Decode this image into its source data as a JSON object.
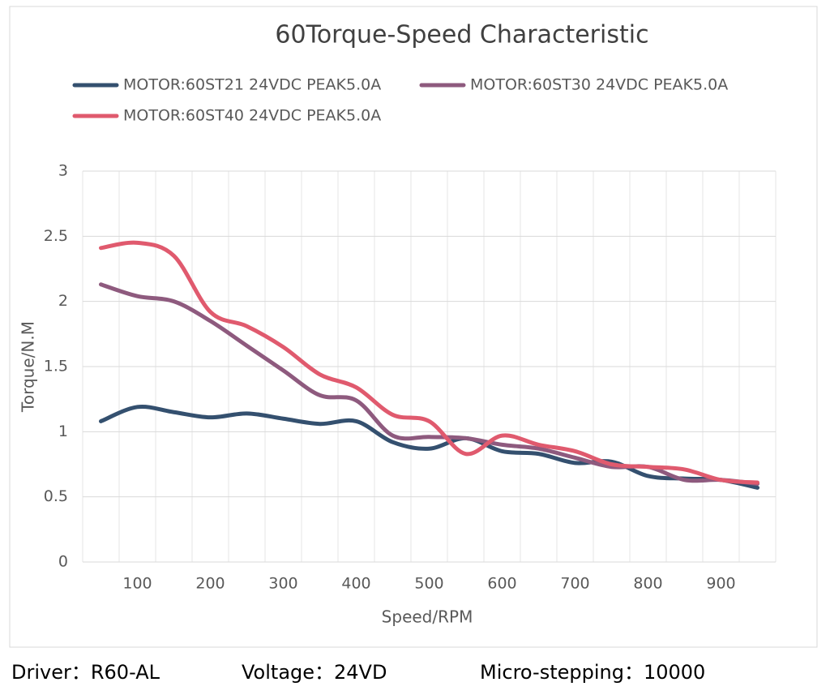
{
  "chart_data": {
    "type": "line",
    "title": "60Torque-Speed Characteristic",
    "x_label": "Speed/RPM",
    "y_label": "Torque/N.M",
    "categories": [
      null,
      "100",
      null,
      "200",
      null,
      "300",
      null,
      "400",
      null,
      "500",
      null,
      "600",
      null,
      "700",
      null,
      "800",
      null,
      "900",
      null
    ],
    "series": [
      {
        "name": "MOTOR:60ST21 24VDC PEAK5.0A",
        "color": "#34506f",
        "values": [
          1.08,
          1.19,
          1.15,
          1.11,
          1.14,
          1.1,
          1.06,
          1.08,
          0.92,
          0.87,
          0.95,
          0.85,
          0.83,
          0.76,
          0.77,
          0.66,
          0.64,
          0.63,
          0.57
        ]
      },
      {
        "name": "MOTOR:60ST30 24VDC PEAK5.0A",
        "color": "#8e5a7e",
        "values": [
          2.13,
          2.04,
          2.0,
          1.85,
          1.66,
          1.47,
          1.28,
          1.24,
          0.97,
          0.96,
          0.95,
          0.9,
          0.87,
          0.8,
          0.73,
          0.73,
          0.63,
          0.63,
          0.6
        ]
      },
      {
        "name": "MOTOR:60ST40 24VDC PEAK5.0A",
        "color": "#e05a6e",
        "values": [
          2.41,
          2.45,
          2.35,
          1.92,
          1.81,
          1.65,
          1.44,
          1.34,
          1.13,
          1.08,
          0.83,
          0.97,
          0.9,
          0.85,
          0.75,
          0.73,
          0.71,
          0.63,
          0.61
        ]
      }
    ],
    "ylim": [
      0,
      3
    ],
    "yticks": [
      0,
      0.5,
      1,
      1.5,
      2,
      2.5,
      3
    ],
    "grid": true,
    "annotations": [
      "Driver：R60-AL",
      "Voltage：24VD",
      "Micro-stepping：10000"
    ]
  }
}
